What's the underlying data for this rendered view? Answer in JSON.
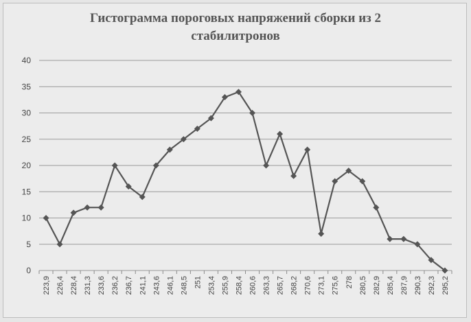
{
  "chart_data": {
    "type": "line",
    "title_lines": [
      "Гистограмма пороговых напряжений сборки из 2",
      "стабилитронов"
    ],
    "categories": [
      "223,9",
      "226,4",
      "228,4",
      "231,3",
      "233,6",
      "236,2",
      "236,7",
      "241,1",
      "243,6",
      "246,1",
      "248,5",
      "251",
      "253,4",
      "255,9",
      "258,4",
      "260,6",
      "263,3",
      "265,7",
      "268,2",
      "270,6",
      "273,1",
      "275,6",
      "278",
      "280,5",
      "282,9",
      "285,4",
      "287,9",
      "290,3",
      "292,3",
      "295,2"
    ],
    "values": [
      10,
      5,
      11,
      12,
      12,
      20,
      16,
      14,
      20,
      23,
      25,
      27,
      29,
      33,
      34,
      30,
      20,
      26,
      18,
      23,
      7,
      17,
      19,
      17,
      12,
      6,
      6,
      5,
      2,
      0
    ],
    "ylim": [
      0,
      40
    ],
    "yticks": [
      "0",
      "5",
      "10",
      "15",
      "20",
      "25",
      "30",
      "35",
      "40"
    ],
    "grid": true,
    "legend": "none",
    "colors": {
      "line": "#555555",
      "grid": "#9a9a9a",
      "background": "#ececec"
    }
  }
}
